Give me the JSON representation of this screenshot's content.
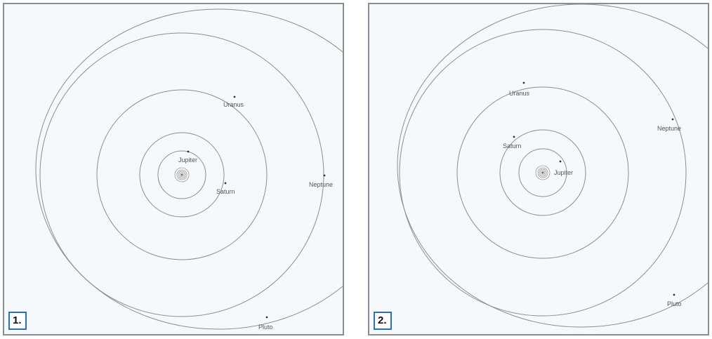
{
  "colors": {
    "panel_border": "#8a8f96",
    "panel_background": "#f6f9fb",
    "orbit_stroke": "#8d8d8d",
    "label_badge_border": "#2d6fb5"
  },
  "panels": [
    {
      "number_label": "1.",
      "planets": {
        "jupiter": "Jupiter",
        "saturn": "Saturn",
        "uranus": "Uranus",
        "neptune": "Neptune",
        "pluto": "Pluto"
      }
    },
    {
      "number_label": "2.",
      "planets": {
        "jupiter": "Jupiter",
        "saturn": "Saturn",
        "uranus": "Uranus",
        "neptune": "Neptune",
        "pluto": "Pluto"
      }
    }
  ]
}
